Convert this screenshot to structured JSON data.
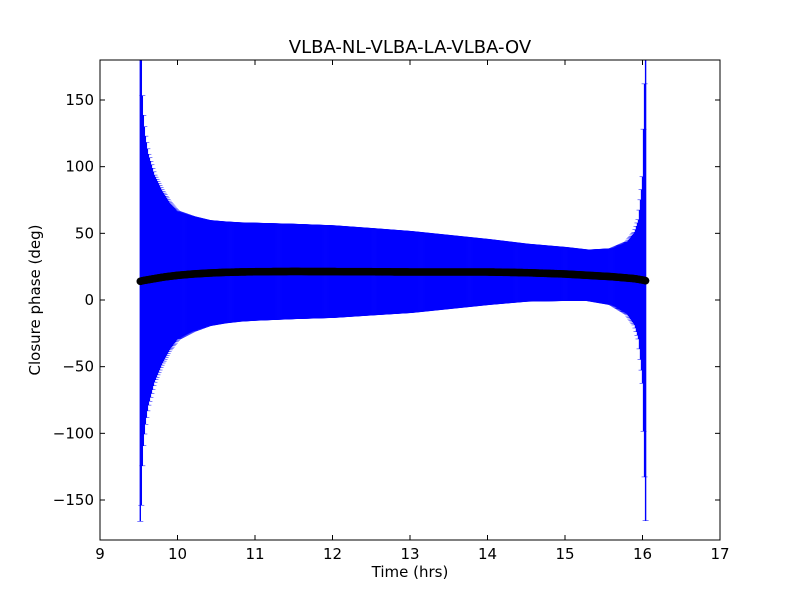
{
  "chart_data": {
    "type": "scatter",
    "title": "VLBA-NL-VLBA-LA-VLBA-OV",
    "xlabel": "Time (hrs)",
    "ylabel": "Closure phase (deg)",
    "xlim": [
      9,
      17
    ],
    "ylim": [
      -180,
      180
    ],
    "xticks": [
      9,
      10,
      11,
      12,
      13,
      14,
      15,
      16,
      17
    ],
    "yticks": [
      -150,
      -100,
      -50,
      0,
      50,
      100,
      150
    ],
    "grid": false,
    "legend": "none",
    "series": [
      {
        "kind": "errorbar",
        "color": "#0000ff",
        "marker_color": "#000000",
        "points": [
          {
            "x": 9.52,
            "y": 14.0,
            "err": 180
          },
          {
            "x": 9.53,
            "y": 14.2,
            "err": 175
          },
          {
            "x": 9.55,
            "y": 14.5,
            "err": 130
          },
          {
            "x": 9.58,
            "y": 14.8,
            "err": 110
          },
          {
            "x": 9.62,
            "y": 15.2,
            "err": 95
          },
          {
            "x": 9.7,
            "y": 16.0,
            "err": 78
          },
          {
            "x": 9.8,
            "y": 17.0,
            "err": 65
          },
          {
            "x": 9.9,
            "y": 17.8,
            "err": 55
          },
          {
            "x": 10.0,
            "y": 18.5,
            "err": 48
          },
          {
            "x": 10.2,
            "y": 19.5,
            "err": 43
          },
          {
            "x": 10.4,
            "y": 20.2,
            "err": 39.5
          },
          {
            "x": 10.6,
            "y": 20.7,
            "err": 38
          },
          {
            "x": 10.8,
            "y": 21.0,
            "err": 37
          },
          {
            "x": 11.0,
            "y": 21.2,
            "err": 36.5
          },
          {
            "x": 11.5,
            "y": 21.4,
            "err": 35.5
          },
          {
            "x": 12.0,
            "y": 21.3,
            "err": 34.5
          },
          {
            "x": 12.5,
            "y": 21.2,
            "err": 32.5
          },
          {
            "x": 13.0,
            "y": 21.0,
            "err": 30.5
          },
          {
            "x": 13.5,
            "y": 21.0,
            "err": 27.5
          },
          {
            "x": 14.0,
            "y": 21.0,
            "err": 24.5
          },
          {
            "x": 14.5,
            "y": 20.5,
            "err": 21.5
          },
          {
            "x": 15.0,
            "y": 19.5,
            "err": 20.0
          },
          {
            "x": 15.3,
            "y": 18.5,
            "err": 19.0
          },
          {
            "x": 15.6,
            "y": 17.5,
            "err": 21.0
          },
          {
            "x": 15.8,
            "y": 16.5,
            "err": 27.0
          },
          {
            "x": 15.9,
            "y": 16.0,
            "err": 35.0
          },
          {
            "x": 15.95,
            "y": 15.5,
            "err": 45.0
          },
          {
            "x": 16.0,
            "y": 15.0,
            "err": 75.0
          },
          {
            "x": 16.02,
            "y": 14.8,
            "err": 130.0
          },
          {
            "x": 16.04,
            "y": 14.5,
            "err": 180.0
          }
        ]
      }
    ]
  }
}
